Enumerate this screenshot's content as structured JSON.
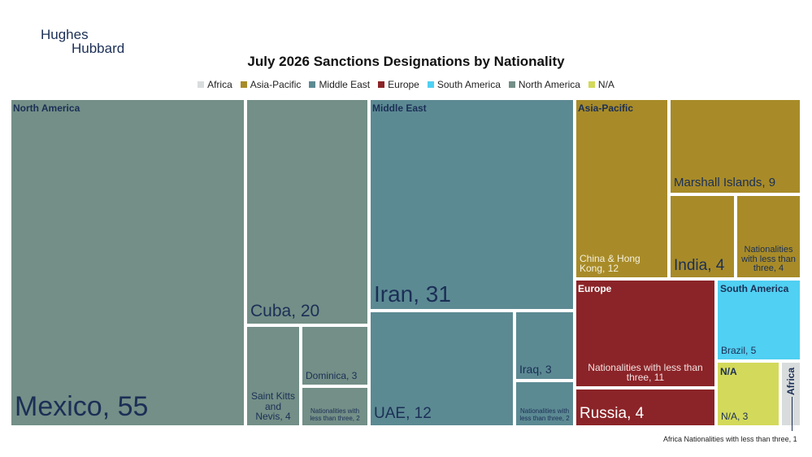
{
  "logo": {
    "line1": "Hughes",
    "line2": "Hubbard"
  },
  "chart_data": {
    "type": "treemap",
    "title": "July 2026 Sanctions Designations by Nationality",
    "legend": [
      {
        "name": "Africa",
        "color": "#d9dcdc"
      },
      {
        "name": "Asia-Pacific",
        "color": "#a88b28"
      },
      {
        "name": "Middle East",
        "color": "#5c8a93"
      },
      {
        "name": "Europe",
        "color": "#8b2428"
      },
      {
        "name": "South America",
        "color": "#50d0f2"
      },
      {
        "name": "North America",
        "color": "#738f87"
      },
      {
        "name": "N/A",
        "color": "#d3d95a"
      }
    ],
    "groups": [
      {
        "name": "North America",
        "label": "North America",
        "color": "#738f87",
        "items": [
          {
            "name": "Mexico",
            "value": 55,
            "label": "Mexico, 55"
          },
          {
            "name": "Cuba",
            "value": 20,
            "label": "Cuba, 20"
          },
          {
            "name": "Saint Kitts and Nevis",
            "value": 4,
            "label": "Saint Kitts and Nevis, 4"
          },
          {
            "name": "Dominica",
            "value": 3,
            "label": "Dominica, 3"
          },
          {
            "name": "Nationalities with less than three",
            "value": 2,
            "label": "Nationalities with less than three, 2"
          }
        ]
      },
      {
        "name": "Middle East",
        "label": "Middle East",
        "color": "#5c8a93",
        "items": [
          {
            "name": "Iran",
            "value": 31,
            "label": "Iran, 31"
          },
          {
            "name": "UAE",
            "value": 12,
            "label": "UAE, 12"
          },
          {
            "name": "Iraq",
            "value": 3,
            "label": "Iraq, 3"
          },
          {
            "name": "Nationalities with less than three",
            "value": 2,
            "label": "Nationalities with less than three, 2"
          }
        ]
      },
      {
        "name": "Asia-Pacific",
        "label": "Asia-Pacific",
        "color": "#a88b28",
        "items": [
          {
            "name": "China & Hong Kong",
            "value": 12,
            "label": "China & Hong Kong, 12"
          },
          {
            "name": "Marshall Islands",
            "value": 9,
            "label": "Marshall Islands, 9"
          },
          {
            "name": "India",
            "value": 4,
            "label": "India, 4"
          },
          {
            "name": "Nationalities with less than three",
            "value": 4,
            "label": "Nationalities with less than three, 4"
          }
        ]
      },
      {
        "name": "Europe",
        "label": "Europe",
        "color": "#8b2428",
        "items": [
          {
            "name": "Nationalities with less than three",
            "value": 11,
            "label": "Nationalities with less than three, 11"
          },
          {
            "name": "Russia",
            "value": 4,
            "label": "Russia, 4"
          }
        ]
      },
      {
        "name": "South America",
        "label": "South America",
        "color": "#50d0f2",
        "items": [
          {
            "name": "Brazil",
            "value": 5,
            "label": "Brazil, 5"
          }
        ]
      },
      {
        "name": "N/A",
        "label": "N/A",
        "color": "#d3d95a",
        "items": [
          {
            "name": "N/A",
            "value": 3,
            "label": "N/A, 3"
          }
        ]
      },
      {
        "name": "Africa",
        "label": "Africa",
        "color": "#d9dcdc",
        "items": [
          {
            "name": "Nationalities with less than three",
            "value": 1,
            "label": ""
          }
        ]
      }
    ],
    "annotation": "Africa Nationalities with less than three, 1"
  }
}
